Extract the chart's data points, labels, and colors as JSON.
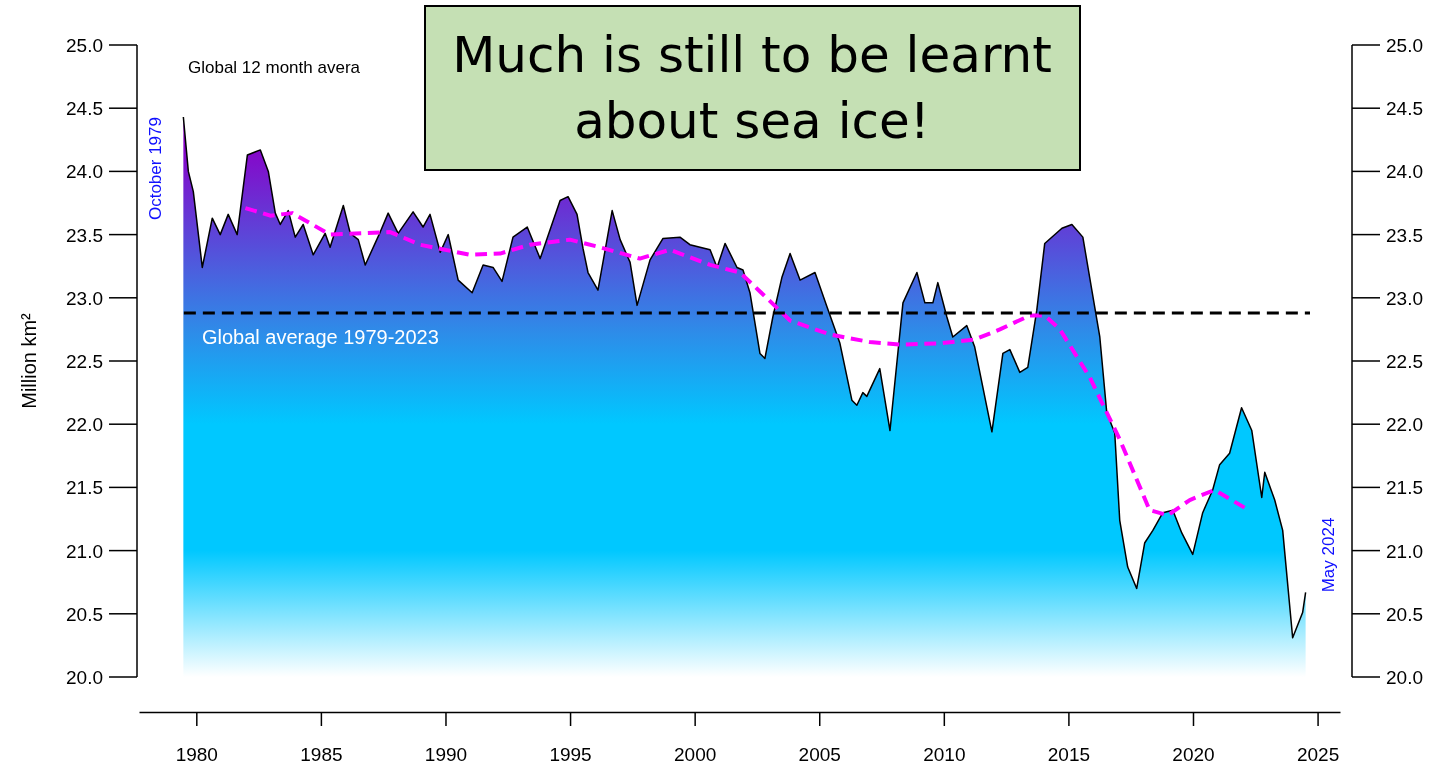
{
  "chart_data": {
    "type": "area",
    "title": "Global 12 month avera",
    "ylabel": "Million km²",
    "xlim": [
      1977.7,
      2025.9
    ],
    "xticks": [
      1980,
      1985,
      1990,
      1995,
      2000,
      2005,
      2010,
      2015,
      2020,
      2025
    ],
    "ylim": [
      20,
      25
    ],
    "yticks": [
      {
        "value": 20,
        "label": "20.0"
      },
      {
        "value": 20.5,
        "label": "20.5"
      },
      {
        "value": 21,
        "label": "21.0"
      },
      {
        "value": 21.5,
        "label": "21.5"
      },
      {
        "value": 22,
        "label": "22.0"
      },
      {
        "value": 22.5,
        "label": "22.5"
      },
      {
        "value": 23,
        "label": "23.0"
      },
      {
        "value": 23.5,
        "label": "23.5"
      },
      {
        "value": 24,
        "label": "24.0"
      },
      {
        "value": 24.5,
        "label": "24.5"
      },
      {
        "value": 25,
        "label": "25.0"
      }
    ],
    "y2lim": [
      20,
      25
    ],
    "y2ticks": [
      {
        "value": 20,
        "label": "20.0"
      },
      {
        "value": 20.5,
        "label": "20.5"
      },
      {
        "value": 21,
        "label": "21.0"
      },
      {
        "value": 21.5,
        "label": "21.5"
      },
      {
        "value": 22,
        "label": "22.0"
      },
      {
        "value": 22.5,
        "label": "22.5"
      },
      {
        "value": 23,
        "label": "23.0"
      },
      {
        "value": 23.5,
        "label": "23.5"
      },
      {
        "value": 24,
        "label": "24.0"
      },
      {
        "value": 24.5,
        "label": "24.5"
      },
      {
        "value": 25,
        "label": "25.0"
      }
    ],
    "series": [
      {
        "color": "#00c8ff",
        "x": [
          1979.48,
          1979.68,
          1979.88,
          1980.24,
          1980.64,
          1980.96,
          1981.28,
          1981.64,
          1982.05,
          1982.57,
          1982.89,
          1983.17,
          1983.37,
          1983.69,
          1983.97,
          1984.29,
          1984.69,
          1985.17,
          1985.37,
          1985.9,
          1986.18,
          1986.5,
          1986.78,
          1987.38,
          1987.7,
          1988.1,
          1988.7,
          1989.1,
          1989.38,
          1989.79,
          1990.11,
          1990.51,
          1991.07,
          1991.51,
          1991.91,
          1992.27,
          1992.71,
          1993.28,
          1993.8,
          1994.6,
          1994.92,
          1995.28,
          1995.52,
          1995.72,
          1996.12,
          1996.69,
          1997.01,
          1997.41,
          1997.69,
          1998.21,
          1998.73,
          1999.41,
          1999.81,
          2000.62,
          2000.9,
          2001.22,
          2001.7,
          2001.94,
          2002.22,
          2002.62,
          2002.82,
          2003.14,
          2003.5,
          2003.83,
          2004.23,
          2004.83,
          2005.31,
          2005.83,
          2006.31,
          2006.51,
          2006.75,
          2006.91,
          2007.43,
          2007.84,
          2008.36,
          2008.92,
          2009.24,
          2009.56,
          2009.76,
          2010.12,
          2010.36,
          2010.92,
          2011.24,
          2011.93,
          2012.37,
          2012.65,
          2013.05,
          2013.37,
          2013.73,
          2014.05,
          2014.74,
          2015.14,
          2015.58,
          2015.94,
          2016.26,
          2016.54,
          2016.86,
          2017.06,
          2017.38,
          2017.74,
          2018.06,
          2018.39,
          2018.79,
          2019.19,
          2019.55,
          2019.99,
          2020.39,
          2020.79,
          2021.07,
          2021.47,
          2021.95,
          2022.36,
          2022.76,
          2022.88,
          2023.28,
          2023.6,
          2024.0,
          2024.4,
          2024.52
        ],
        "values": [
          24.43,
          24.0,
          23.84,
          23.24,
          23.63,
          23.5,
          23.66,
          23.5,
          24.13,
          24.17,
          24.0,
          23.67,
          23.58,
          23.69,
          23.48,
          23.58,
          23.34,
          23.51,
          23.4,
          23.73,
          23.51,
          23.46,
          23.26,
          23.52,
          23.67,
          23.51,
          23.68,
          23.56,
          23.66,
          23.36,
          23.5,
          23.14,
          23.04,
          23.26,
          23.24,
          23.13,
          23.48,
          23.56,
          23.31,
          23.77,
          23.8,
          23.66,
          23.39,
          23.2,
          23.06,
          23.69,
          23.46,
          23.28,
          22.94,
          23.3,
          23.47,
          23.48,
          23.42,
          23.38,
          23.24,
          23.43,
          23.24,
          23.22,
          23.04,
          22.56,
          22.52,
          22.85,
          23.16,
          23.35,
          23.14,
          23.2,
          22.93,
          22.64,
          22.19,
          22.15,
          22.25,
          22.22,
          22.44,
          21.95,
          22.96,
          23.2,
          22.96,
          22.96,
          23.12,
          22.85,
          22.69,
          22.78,
          22.61,
          21.94,
          22.56,
          22.59,
          22.41,
          22.45,
          22.9,
          23.43,
          23.55,
          23.58,
          23.48,
          23.06,
          22.69,
          22.09,
          21.93,
          21.24,
          20.87,
          20.7,
          21.06,
          21.16,
          21.3,
          21.32,
          21.14,
          20.97,
          21.3,
          21.48,
          21.68,
          21.77,
          22.13,
          21.95,
          21.42,
          21.62,
          21.4,
          21.16,
          20.31,
          20.51,
          20.67
        ]
      },
      {
        "type": "line",
        "color": "#ff00ff",
        "line_style": "dashed",
        "x": [
          1981.97,
          1982.97,
          1983.85,
          1985.37,
          1987.78,
          1988.98,
          1990.99,
          1992.19,
          1993.39,
          1994.99,
          1996.2,
          1997.8,
          1999.01,
          2000.62,
          2001.82,
          2002.62,
          2003.83,
          2005.43,
          2007.03,
          2008.24,
          2009.84,
          2011.24,
          2012.25,
          2013.45,
          2014.05,
          2014.66,
          2015.86,
          2017.06,
          2018.26,
          2018.99,
          2019.87,
          2020.87,
          2022.07
        ],
        "values": [
          23.71,
          23.65,
          23.67,
          23.5,
          23.52,
          23.42,
          23.34,
          23.35,
          23.42,
          23.46,
          23.4,
          23.31,
          23.38,
          23.26,
          23.2,
          23.05,
          22.82,
          22.71,
          22.65,
          22.63,
          22.64,
          22.67,
          22.75,
          22.86,
          22.86,
          22.75,
          22.37,
          21.88,
          21.32,
          21.28,
          21.4,
          21.48,
          21.34
        ]
      }
    ],
    "ref_lines": [
      {
        "axis": "y",
        "value": 22.88,
        "label": "Global average 1979-2023",
        "color": "#000000",
        "line_style": "dashed"
      }
    ],
    "annotations": [
      {
        "text": "October 1979",
        "x": 1979.48,
        "y": 24.43
      },
      {
        "text": "May 2024",
        "x": 2024.52,
        "y": 20.67
      },
      "Much is still to be learnt about sea ice!"
    ]
  }
}
